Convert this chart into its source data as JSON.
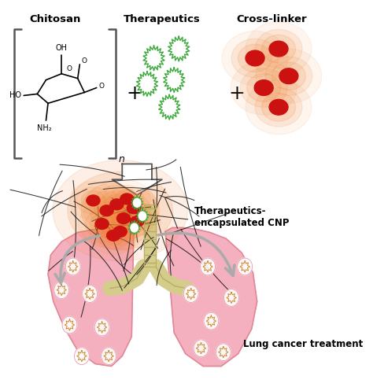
{
  "bg_color": "#ffffff",
  "chitosan_label": "Chitosan",
  "therapeutics_label": "Therapeutics",
  "crosslinker_label": "Cross-linker",
  "cnp_label": "Therapeutics-\nencapsulated CNP",
  "lung_label": "Lung cancer treatment",
  "green_color": "#3aaa3a",
  "red_color": "#cc1111",
  "orange_glow": "#f08030",
  "pink_lung": "#f5b0c0",
  "pink_lung_dark": "#e08898",
  "trachea_color": "#d4cc8a",
  "trachea_dark": "#b8ad65",
  "arrow_gray": "#aaaaaa",
  "bracket_color": "#555555"
}
